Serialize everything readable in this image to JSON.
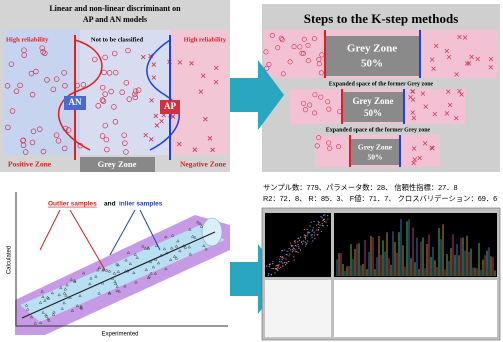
{
  "discriminant_slide": {
    "title": [
      "Linear and non-linear discriminant on",
      "AP and AN models"
    ],
    "top_labels": [
      "High reliability",
      "Not to be classified",
      "High reliability"
    ],
    "model_labels": [
      "AN",
      "AP"
    ],
    "zones": [
      "Positive Zone",
      "Grey Zone",
      "Negative Zone"
    ]
  },
  "kstep_slide": {
    "title": "Steps to the K-step methods",
    "steps": [
      {
        "zone": "Grey Zone",
        "share": "50%"
      },
      {
        "caption": "Expanded space of the former Grey zone",
        "zone": "Grey Zone",
        "share": "50%"
      },
      {
        "caption": "Expanded space of the former Grey zone",
        "zone": "Grey Zone",
        "share": "50%"
      }
    ]
  },
  "regression_slide": {
    "legend": [
      "Outlier samples",
      "and",
      "inlier samples"
    ],
    "y_label": "Calculated",
    "x_label": "Experimented"
  },
  "results_slide": {
    "stats": [
      "サンプル数：779、パラメータ数：28、 信頼性指標：27．8",
      "R2：72．8、 R：85．3、 F値：71．7、 クロスバリデーション：69．6"
    ]
  }
}
